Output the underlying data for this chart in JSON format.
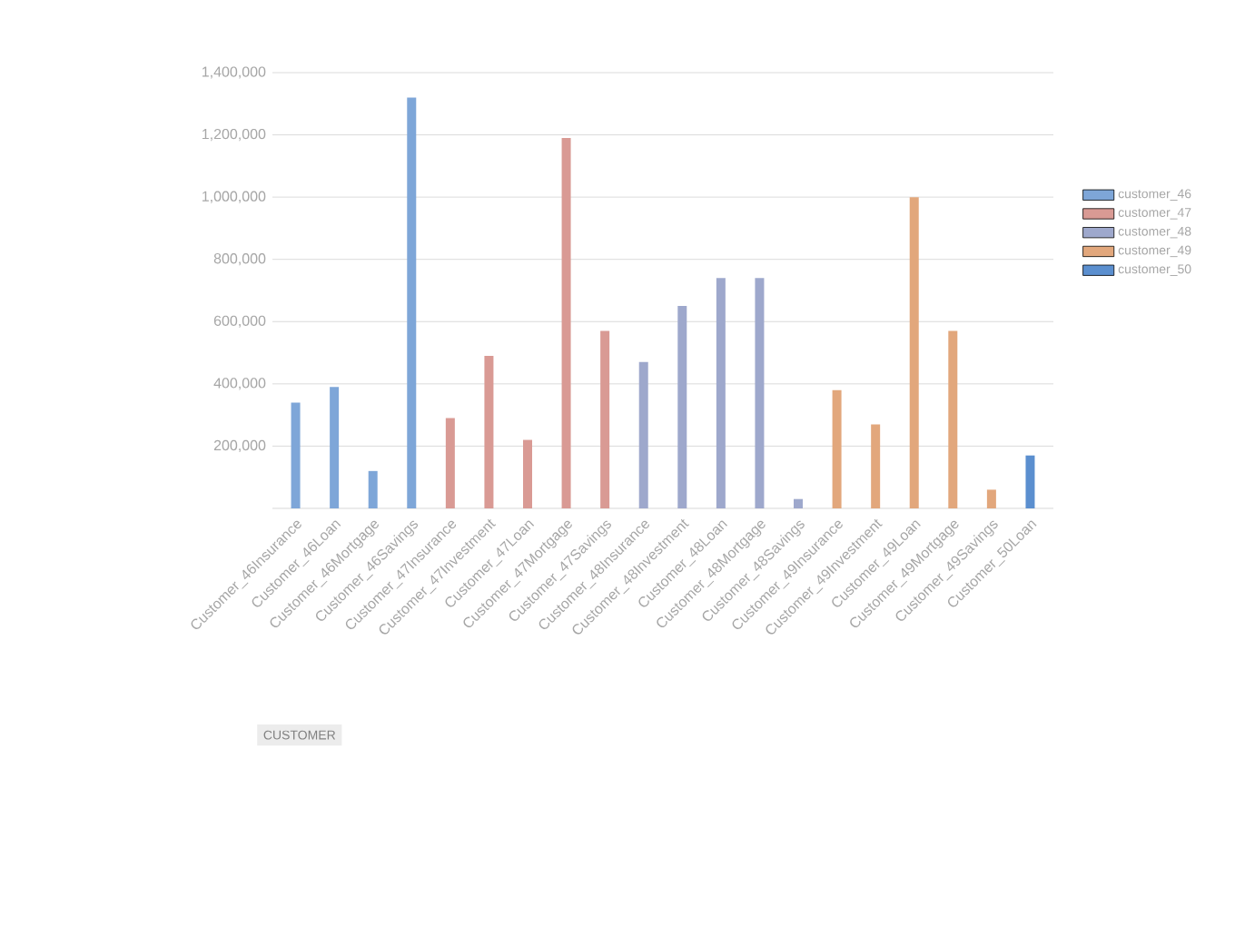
{
  "chart_data": {
    "type": "bar",
    "annotations": [
      "CUSTOMER"
    ],
    "categories": [
      "Customer_46Insurance",
      "Customer_46Loan",
      "Customer_46Mortgage",
      "Customer_46Savings",
      "Customer_47Insurance",
      "Customer_47Investment",
      "Customer_47Loan",
      "Customer_47Mortgage",
      "Customer_47Savings",
      "Customer_48Insurance",
      "Customer_48Investment",
      "Customer_48Loan",
      "Customer_48Mortgage",
      "Customer_48Savings",
      "Customer_49Insurance",
      "Customer_49Investment",
      "Customer_49Loan",
      "Customer_49Mortgage",
      "Customer_49Savings",
      "Customer_50Loan"
    ],
    "series": [
      {
        "name": "customer_46",
        "color": "#7ea6d8",
        "values": [
          340000,
          390000,
          120000,
          1320000,
          null,
          null,
          null,
          null,
          null,
          null,
          null,
          null,
          null,
          null,
          null,
          null,
          null,
          null,
          null,
          null
        ]
      },
      {
        "name": "customer_47",
        "color": "#d99a94",
        "values": [
          null,
          null,
          null,
          null,
          290000,
          490000,
          220000,
          1190000,
          570000,
          null,
          null,
          null,
          null,
          null,
          null,
          null,
          null,
          null,
          null,
          null
        ]
      },
      {
        "name": "customer_48",
        "color": "#9ea8cc",
        "values": [
          null,
          null,
          null,
          null,
          null,
          null,
          null,
          null,
          null,
          470000,
          650000,
          740000,
          740000,
          30000,
          null,
          null,
          null,
          null,
          null,
          null
        ]
      },
      {
        "name": "customer_49",
        "color": "#e2a77c",
        "values": [
          null,
          null,
          null,
          null,
          null,
          null,
          null,
          null,
          null,
          null,
          null,
          null,
          null,
          null,
          380000,
          270000,
          1000000,
          570000,
          60000,
          null
        ]
      },
      {
        "name": "customer_50",
        "color": "#5b8fcf",
        "values": [
          null,
          null,
          null,
          null,
          null,
          null,
          null,
          null,
          null,
          null,
          null,
          null,
          null,
          null,
          null,
          null,
          null,
          null,
          null,
          170000
        ]
      }
    ],
    "ylim": [
      0,
      1400000
    ],
    "yticks": [
      {
        "value": 200000,
        "label": "200,000"
      },
      {
        "value": 400000,
        "label": "400,000"
      },
      {
        "value": 600000,
        "label": "600,000"
      },
      {
        "value": 800000,
        "label": "800,000"
      },
      {
        "value": 1000000,
        "label": "1,000,000"
      },
      {
        "value": 1200000,
        "label": "1,200,000"
      },
      {
        "value": 1400000,
        "label": "1,400,000"
      }
    ],
    "grid": "y",
    "legend": "right"
  }
}
